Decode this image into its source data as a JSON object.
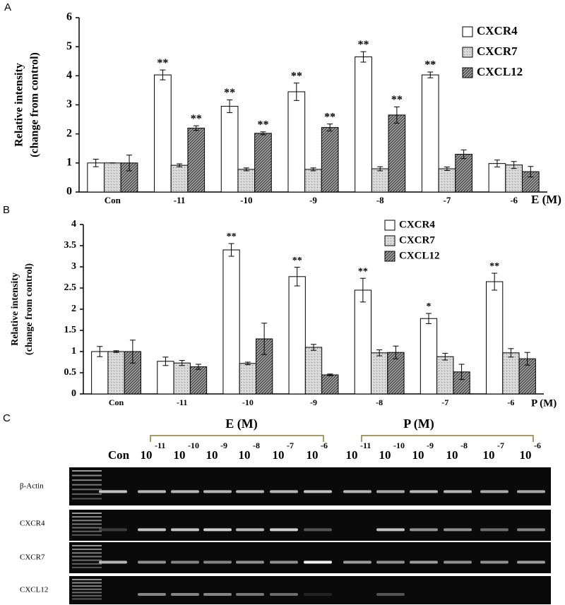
{
  "chart_data": [
    {
      "type": "bar",
      "panel": "A",
      "ylabel": [
        "Relative intensity",
        "(change from control)"
      ],
      "xlabel": "E (M)",
      "categories": [
        "Con",
        "-11",
        "-10",
        "-9",
        "-8",
        "-7",
        "-6"
      ],
      "ylim": [
        0,
        6
      ],
      "yticks": [
        0,
        1,
        2,
        3,
        4,
        5,
        6
      ],
      "grid": false,
      "legend": "upper right",
      "series": [
        {
          "name": "CXCR4",
          "color": "#ffffff",
          "values": [
            1.0,
            4.03,
            2.95,
            3.45,
            4.65,
            4.03,
            0.98
          ],
          "errors": [
            0.13,
            0.17,
            0.22,
            0.3,
            0.18,
            0.1,
            0.12
          ],
          "significance": [
            null,
            "**",
            "**",
            "**",
            "**",
            "**",
            null
          ]
        },
        {
          "name": "CXCR7",
          "color": "#d9d9d9",
          "values": [
            1.0,
            0.92,
            0.78,
            0.78,
            0.8,
            0.8,
            0.93
          ],
          "errors": [
            0.0,
            0.05,
            0.05,
            0.05,
            0.07,
            0.06,
            0.12
          ],
          "significance": [
            null,
            null,
            null,
            null,
            null,
            null,
            null
          ]
        },
        {
          "name": "CXCL12",
          "color": "#a6a6a6",
          "values": [
            1.0,
            2.2,
            2.02,
            2.22,
            2.65,
            1.3,
            0.7
          ],
          "errors": [
            0.27,
            0.08,
            0.05,
            0.12,
            0.28,
            0.15,
            0.18
          ],
          "significance": [
            null,
            "**",
            "**",
            "**",
            "**",
            null,
            null
          ]
        }
      ]
    },
    {
      "type": "bar",
      "panel": "B",
      "ylabel": [
        "Relative intensity",
        "(change from control)"
      ],
      "xlabel": "P (M)",
      "categories": [
        "Con",
        "-11",
        "-10",
        "-9",
        "-8",
        "-7",
        "-6"
      ],
      "ylim": [
        0,
        4
      ],
      "yticks": [
        0,
        0.5,
        1,
        1.5,
        2,
        2.5,
        3,
        3.5,
        4
      ],
      "grid": false,
      "legend": "upper right",
      "series": [
        {
          "name": "CXCR4",
          "color": "#ffffff",
          "values": [
            1.0,
            0.77,
            3.4,
            2.77,
            2.45,
            1.78,
            2.65
          ],
          "errors": [
            0.12,
            0.1,
            0.15,
            0.22,
            0.28,
            0.12,
            0.2
          ],
          "significance": [
            null,
            null,
            "**",
            "**",
            "**",
            "*",
            "**"
          ]
        },
        {
          "name": "CXCR7",
          "color": "#d9d9d9",
          "values": [
            1.0,
            0.73,
            0.72,
            1.1,
            0.97,
            0.88,
            0.97
          ],
          "errors": [
            0.02,
            0.06,
            0.03,
            0.07,
            0.07,
            0.08,
            0.1
          ],
          "significance": [
            null,
            null,
            null,
            null,
            null,
            null,
            null
          ]
        },
        {
          "name": "CXCL12",
          "color": "#a6a6a6",
          "values": [
            1.0,
            0.64,
            1.3,
            0.45,
            0.98,
            0.52,
            0.83
          ],
          "errors": [
            0.27,
            0.06,
            0.37,
            0.02,
            0.15,
            0.18,
            0.15
          ],
          "significance": [
            null,
            null,
            null,
            null,
            null,
            null,
            null
          ]
        }
      ]
    }
  ],
  "gel": {
    "panel": "C",
    "control": "Con",
    "groups": [
      {
        "label": "E (M)",
        "lanes": [
          {
            "base": "10",
            "exponent": "-11"
          },
          {
            "base": "10",
            "exponent": "-10"
          },
          {
            "base": "10",
            "exponent": "-9"
          },
          {
            "base": "10",
            "exponent": "-8"
          },
          {
            "base": "10",
            "exponent": "-7"
          },
          {
            "base": "10",
            "exponent": "-6"
          }
        ]
      },
      {
        "label": "P (M)",
        "lanes": [
          {
            "base": "10",
            "exponent": "-11"
          },
          {
            "base": "10",
            "exponent": "-10"
          },
          {
            "base": "10",
            "exponent": "-9"
          },
          {
            "base": "10",
            "exponent": "-8"
          },
          {
            "base": "10",
            "exponent": "-7"
          },
          {
            "base": "10",
            "exponent": "-6"
          }
        ]
      }
    ],
    "rows": [
      "β-Actin",
      "CXCR4",
      "CXCR7",
      "CXCL12"
    ]
  }
}
